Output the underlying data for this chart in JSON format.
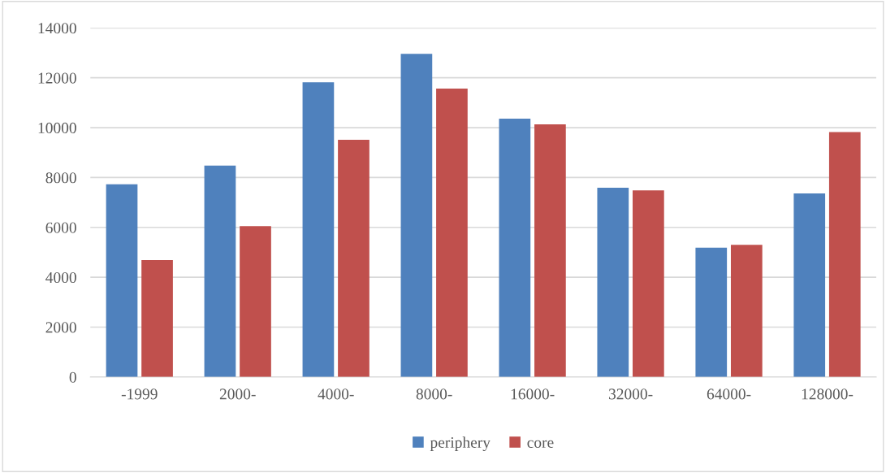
{
  "chart_data": {
    "type": "bar",
    "categories": [
      "-1999",
      "2000-",
      "4000-",
      "8000-",
      "16000-",
      "32000-",
      "64000-",
      "128000-"
    ],
    "series": [
      {
        "name": "periphery",
        "color": "#4f81bd",
        "values": [
          7730,
          8480,
          11820,
          12960,
          10360,
          7590,
          5190,
          7360
        ]
      },
      {
        "name": "core",
        "color": "#c0504d",
        "values": [
          4690,
          6050,
          9510,
          11570,
          10130,
          7480,
          5300,
          9820
        ]
      }
    ],
    "ylim": [
      0,
      14000
    ],
    "yticks": [
      0,
      2000,
      4000,
      6000,
      8000,
      10000,
      12000,
      14000
    ],
    "grid": "y",
    "legend": "bottom"
  }
}
